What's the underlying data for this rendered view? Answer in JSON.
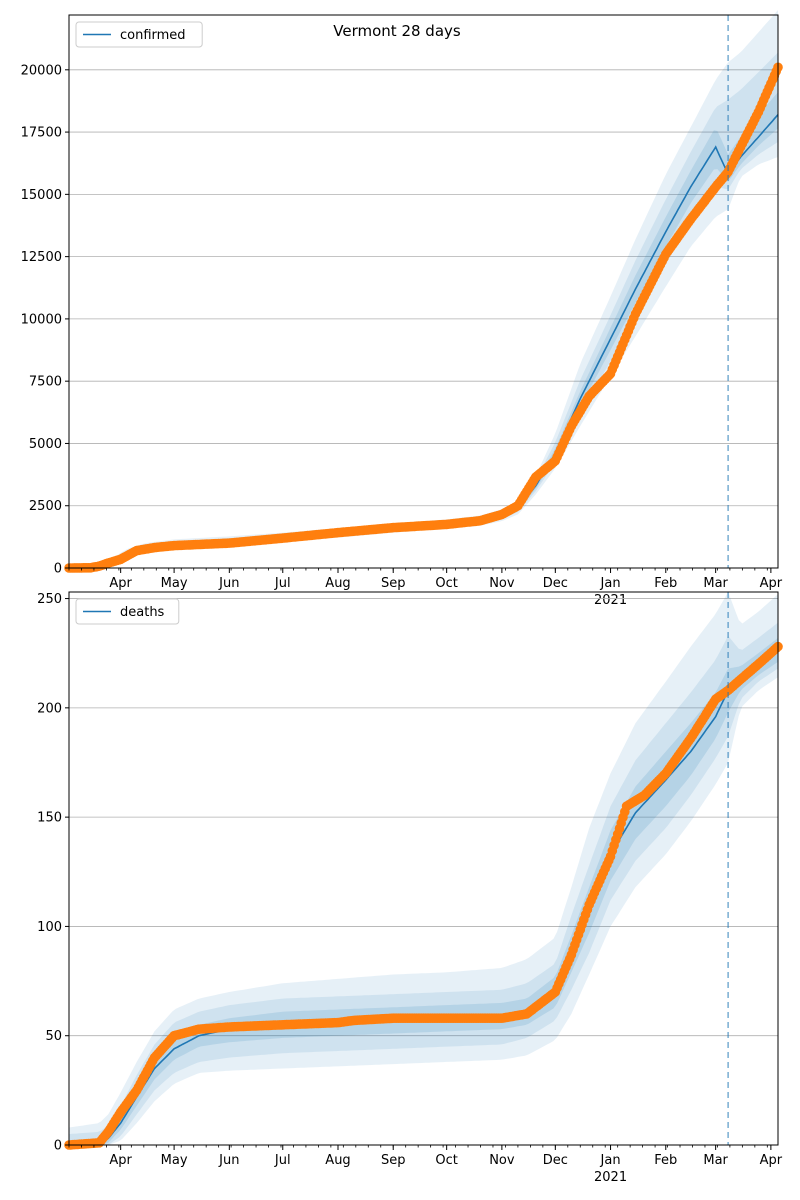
{
  "figure": {
    "title": "Vermont 28 days"
  },
  "colors": {
    "model": "#1f77b4",
    "observed": "#ff7f0e",
    "band": "#1f77b4",
    "grid": "#b0b0b0",
    "forecast_line": "#1f77b4"
  },
  "chart_data": [
    {
      "type": "line",
      "title": "Vermont 28 days",
      "legend": {
        "label": "confirmed",
        "placement": "top-left"
      },
      "x_tick_labels": [
        "Apr",
        "May",
        "Jun",
        "Jul",
        "Aug",
        "Sep",
        "Oct",
        "Nov",
        "Dec",
        "Jan",
        "Feb",
        "Mar",
        "Apr"
      ],
      "x_tick_dates": [
        "2020-04-01",
        "2020-05-01",
        "2020-06-01",
        "2020-07-01",
        "2020-08-01",
        "2020-09-01",
        "2020-10-01",
        "2020-11-01",
        "2020-12-01",
        "2021-01-01",
        "2021-02-01",
        "2021-03-01",
        "2021-04-01"
      ],
      "x_year_label": "2021",
      "xlim": [
        "2020-03-03",
        "2021-04-05"
      ],
      "forecast_start": "2021-03-08",
      "ylim": [
        0,
        22200
      ],
      "y_ticks": [
        0,
        2500,
        5000,
        7500,
        10000,
        12500,
        15000,
        17500,
        20000
      ],
      "grid": "horizontal",
      "model": {
        "name": "confirmed",
        "dates": [
          "2020-03-03",
          "2020-03-15",
          "2020-03-25",
          "2020-04-05",
          "2020-04-15",
          "2020-05-01",
          "2020-06-01",
          "2020-07-01",
          "2020-08-01",
          "2020-09-01",
          "2020-10-01",
          "2020-10-20",
          "2020-11-01",
          "2020-11-10",
          "2020-11-20",
          "2020-12-01",
          "2020-12-15",
          "2021-01-01",
          "2021-01-15",
          "2021-02-01",
          "2021-02-15",
          "2021-03-01",
          "2021-03-08",
          "2021-03-15",
          "2021-03-25",
          "2021-04-05"
        ],
        "values": [
          0,
          10,
          200,
          600,
          800,
          950,
          1080,
          1220,
          1400,
          1600,
          1750,
          1900,
          2100,
          2400,
          3300,
          4600,
          6800,
          9200,
          11200,
          13500,
          15300,
          16900,
          15800,
          16500,
          17300,
          18200
        ],
        "bands": [
          {
            "level": "outer",
            "lower": [
              0,
              0,
              120,
              430,
              620,
              760,
              900,
              1040,
              1220,
              1420,
              1570,
              1700,
              1880,
              2150,
              2950,
              4000,
              5700,
              7700,
              9300,
              11300,
              12900,
              14100,
              14400,
              15700,
              16200,
              16500
            ],
            "upper": [
              100,
              150,
              300,
              780,
              1000,
              1150,
              1270,
              1420,
              1600,
              1800,
              1950,
              2110,
              2360,
              2700,
              3700,
              5400,
              8200,
              10900,
              13200,
              15800,
              17700,
              19600,
              20300,
              20700,
              21500,
              22400
            ]
          },
          {
            "level": "middle",
            "lower": [
              0,
              0,
              150,
              490,
              680,
              830,
              960,
              1100,
              1280,
              1480,
              1630,
              1770,
              1950,
              2250,
              3080,
              4250,
              6150,
              8300,
              10050,
              12200,
              13900,
              15300,
              15200,
              16000,
              16600,
              17100
            ],
            "upper": [
              60,
              90,
              260,
              710,
              930,
              1070,
              1200,
              1350,
              1530,
              1730,
              1880,
              2040,
              2270,
              2580,
              3550,
              5050,
              7550,
              10150,
              12350,
              14800,
              16700,
              18500,
              18800,
              19200,
              19900,
              20700
            ]
          },
          {
            "level": "inner",
            "lower": [
              0,
              0,
              180,
              540,
              730,
              880,
              1020,
              1160,
              1340,
              1540,
              1690,
              1830,
              2020,
              2330,
              3180,
              4420,
              6480,
              8750,
              10650,
              12900,
              14650,
              16100,
              15500,
              16200,
              16950,
              17650
            ],
            "upper": [
              30,
              50,
              230,
              660,
              870,
              1020,
              1140,
              1280,
              1460,
              1660,
              1810,
              1970,
              2190,
              2480,
              3430,
              4800,
              7100,
              9650,
              11750,
              14100,
              15950,
              17700,
              16600,
              17300,
              18200,
              19100
            ]
          }
        ]
      },
      "observed": {
        "dates": [
          "2020-03-03",
          "2020-03-15",
          "2020-03-20",
          "2020-03-25",
          "2020-04-01",
          "2020-04-10",
          "2020-04-20",
          "2020-05-01",
          "2020-06-01",
          "2020-07-01",
          "2020-08-01",
          "2020-09-01",
          "2020-10-01",
          "2020-10-20",
          "2020-11-01",
          "2020-11-10",
          "2020-11-20",
          "2020-12-01",
          "2020-12-10",
          "2020-12-20",
          "2021-01-01",
          "2021-01-15",
          "2021-02-01",
          "2021-02-15",
          "2021-03-01",
          "2021-03-08",
          "2021-03-15",
          "2021-03-25",
          "2021-04-05"
        ],
        "values": [
          0,
          10,
          75,
          200,
          350,
          700,
          820,
          900,
          1000,
          1200,
          1420,
          1620,
          1750,
          1900,
          2150,
          2500,
          3650,
          4300,
          5700,
          6900,
          7800,
          10200,
          12600,
          14000,
          15300,
          15900,
          16900,
          18300,
          20100
        ]
      }
    },
    {
      "type": "line",
      "legend": {
        "label": "deaths",
        "placement": "top-left"
      },
      "x_tick_labels": [
        "Apr",
        "May",
        "Jun",
        "Jul",
        "Aug",
        "Sep",
        "Oct",
        "Nov",
        "Dec",
        "Jan",
        "Feb",
        "Mar",
        "Apr"
      ],
      "x_tick_dates": [
        "2020-04-01",
        "2020-05-01",
        "2020-06-01",
        "2020-07-01",
        "2020-08-01",
        "2020-09-01",
        "2020-10-01",
        "2020-11-01",
        "2020-12-01",
        "2021-01-01",
        "2021-02-01",
        "2021-03-01",
        "2021-04-01"
      ],
      "x_year_label": "2021",
      "xlim": [
        "2020-03-03",
        "2021-04-05"
      ],
      "forecast_start": "2021-03-08",
      "ylim": [
        0,
        253
      ],
      "y_ticks": [
        0,
        50,
        100,
        150,
        200,
        250
      ],
      "grid": "horizontal",
      "model": {
        "name": "deaths",
        "dates": [
          "2020-03-03",
          "2020-03-20",
          "2020-03-25",
          "2020-04-01",
          "2020-04-10",
          "2020-04-20",
          "2020-05-01",
          "2020-05-15",
          "2020-06-01",
          "2020-07-01",
          "2020-08-01",
          "2020-09-01",
          "2020-10-01",
          "2020-11-01",
          "2020-11-15",
          "2020-12-01",
          "2020-12-10",
          "2020-12-20",
          "2021-01-01",
          "2021-01-15",
          "2021-02-01",
          "2021-02-15",
          "2021-03-01",
          "2021-03-08",
          "2021-03-15",
          "2021-03-25",
          "2021-04-05"
        ],
        "values": [
          0,
          1,
          3,
          10,
          22,
          35,
          44,
          50,
          53,
          55,
          56,
          57,
          58,
          59,
          61,
          70,
          88,
          108,
          133,
          152,
          167,
          180,
          196,
          208,
          213,
          219,
          226
        ],
        "bands": [
          {
            "level": "outer",
            "lower": [
              0,
              0,
              0,
              2,
              10,
              20,
              28,
              33,
              34,
              35,
              36,
              37,
              38,
              39,
              41,
              48,
              60,
              78,
              100,
              118,
              133,
              148,
              165,
              175,
              200,
              208,
              214
            ],
            "upper": [
              8,
              10,
              14,
              24,
              38,
              52,
              62,
              67,
              70,
              74,
              76,
              78,
              79,
              81,
              85,
              95,
              118,
              145,
              170,
              193,
              212,
              228,
              243,
              253,
              238,
              244,
              252
            ]
          },
          {
            "level": "middle",
            "lower": [
              0,
              0,
              0,
              4,
              14,
              25,
              33,
              38,
              40,
              42,
              43,
              44,
              45,
              46,
              49,
              57,
              71,
              88,
              112,
              130,
              145,
              160,
              177,
              187,
              204,
              212,
              218
            ],
            "upper": [
              5,
              6,
              9,
              18,
              32,
              46,
              56,
              61,
              64,
              67,
              68,
              69,
              70,
              71,
              74,
              83,
              105,
              128,
              155,
              176,
              193,
              207,
              222,
              233,
              226,
              232,
              239
            ]
          },
          {
            "level": "inner",
            "lower": [
              0,
              0,
              1,
              7,
              18,
              30,
              39,
              45,
              47,
              49,
              50,
              51,
              52,
              53,
              55,
              63,
              79,
              97,
              121,
              140,
              155,
              169,
              186,
              198,
              208,
              215,
              221
            ],
            "upper": [
              2,
              3,
              6,
              14,
              27,
              41,
              50,
              55,
              58,
              61,
              62,
              63,
              64,
              65,
              67,
              77,
              96,
              118,
              144,
              164,
              180,
              193,
              207,
              218,
              219,
              225,
              232
            ]
          }
        ]
      },
      "observed": {
        "dates": [
          "2020-03-03",
          "2020-03-20",
          "2020-03-25",
          "2020-04-01",
          "2020-04-10",
          "2020-04-20",
          "2020-05-01",
          "2020-05-15",
          "2020-06-01",
          "2020-07-01",
          "2020-08-01",
          "2020-08-10",
          "2020-09-01",
          "2020-10-01",
          "2020-11-01",
          "2020-11-15",
          "2020-12-01",
          "2020-12-10",
          "2020-12-20",
          "2021-01-01",
          "2021-01-10",
          "2021-01-20",
          "2021-02-01",
          "2021-02-15",
          "2021-03-01",
          "2021-03-08",
          "2021-03-15",
          "2021-03-25",
          "2021-04-05"
        ],
        "values": [
          0,
          1,
          6,
          15,
          25,
          40,
          50,
          53,
          54,
          55,
          56,
          57,
          58,
          58,
          58,
          60,
          70,
          87,
          110,
          132,
          155,
          160,
          170,
          186,
          204,
          208,
          213,
          220,
          228
        ]
      }
    }
  ]
}
